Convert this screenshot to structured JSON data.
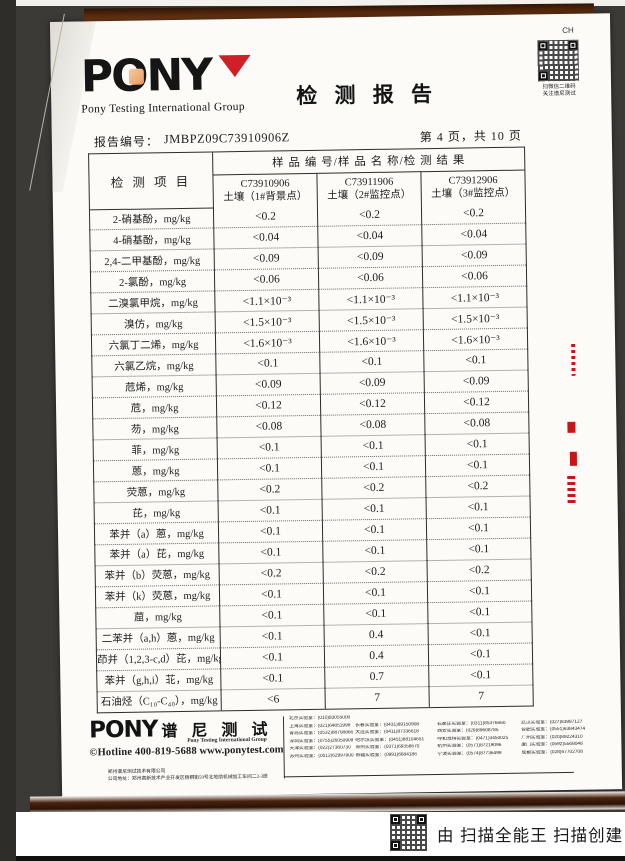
{
  "scan": {
    "corner_mark": "CH",
    "qr_caption_line1": "扫微信二维码",
    "qr_caption_line2": "关注谱尼测试",
    "scanner_attribution": "由 扫描全能王 扫描创建"
  },
  "header": {
    "logo_text": "PONY",
    "logo_tagline": "Pony Testing International Group",
    "title": "检 测 报 告"
  },
  "meta": {
    "report_no_label": "报告编号：",
    "report_no": "JMBPZ09C73910906Z",
    "page_info": "第 4 页，共 10 页"
  },
  "table": {
    "item_header": "检 测 项 目",
    "results_header": "样 品 编 号/样 品 名 称/检 测 结 果",
    "samples": [
      {
        "code": "C73910906",
        "name": "土壤（1#背景点）"
      },
      {
        "code": "C73911906",
        "name": "土壤（2#监控点）"
      },
      {
        "code": "C73912906",
        "name": "土壤（3#监控点）"
      }
    ],
    "rows": [
      {
        "item": "2-硝基酚，mg/kg",
        "values": [
          "<0.2",
          "<0.2",
          "<0.2"
        ]
      },
      {
        "item": "4-硝基酚，mg/kg",
        "values": [
          "<0.04",
          "<0.04",
          "<0.04"
        ]
      },
      {
        "item": "2,4-二甲基酚，mg/kg",
        "values": [
          "<0.09",
          "<0.09",
          "<0.09"
        ]
      },
      {
        "item": "2-氯酚，mg/kg",
        "values": [
          "<0.06",
          "<0.06",
          "<0.06"
        ]
      },
      {
        "item": "二溴氯甲烷，mg/kg",
        "values": [
          "<1.1×10⁻³",
          "<1.1×10⁻³",
          "<1.1×10⁻³"
        ]
      },
      {
        "item": "溴仿，mg/kg",
        "values": [
          "<1.5×10⁻³",
          "<1.5×10⁻³",
          "<1.5×10⁻³"
        ]
      },
      {
        "item": "六氯丁二烯，mg/kg",
        "values": [
          "<1.6×10⁻³",
          "<1.6×10⁻³",
          "<1.6×10⁻³"
        ]
      },
      {
        "item": "六氯乙烷，mg/kg",
        "values": [
          "<0.1",
          "<0.1",
          "<0.1"
        ]
      },
      {
        "item": "苊烯，mg/kg",
        "values": [
          "<0.09",
          "<0.09",
          "<0.09"
        ]
      },
      {
        "item": "苊，mg/kg",
        "values": [
          "<0.12",
          "<0.12",
          "<0.12"
        ]
      },
      {
        "item": "芴，mg/kg",
        "values": [
          "<0.08",
          "<0.08",
          "<0.08"
        ]
      },
      {
        "item": "菲，mg/kg",
        "values": [
          "<0.1",
          "<0.1",
          "<0.1"
        ]
      },
      {
        "item": "蒽，mg/kg",
        "values": [
          "<0.1",
          "<0.1",
          "<0.1"
        ]
      },
      {
        "item": "荧蒽，mg/kg",
        "values": [
          "<0.2",
          "<0.2",
          "<0.2"
        ]
      },
      {
        "item": "芘，mg/kg",
        "values": [
          "<0.1",
          "<0.1",
          "<0.1"
        ]
      },
      {
        "item": "苯并（a）蒽，mg/kg",
        "values": [
          "<0.1",
          "<0.1",
          "<0.1"
        ]
      },
      {
        "item": "苯并（a）芘，mg/kg",
        "values": [
          "<0.1",
          "<0.1",
          "<0.1"
        ]
      },
      {
        "item": "苯并（b）荧蒽，mg/kg",
        "values": [
          "<0.2",
          "<0.2",
          "<0.2"
        ]
      },
      {
        "item": "苯并（k）荧蒽，mg/kg",
        "values": [
          "<0.1",
          "<0.1",
          "<0.1"
        ]
      },
      {
        "item": "䓛，mg/kg",
        "values": [
          "<0.1",
          "<0.1",
          "<0.1"
        ]
      },
      {
        "item": "二苯并（a,h）蒽，mg/kg",
        "values": [
          "<0.1",
          "0.4",
          "<0.1"
        ]
      },
      {
        "item": "茚并（1,2,3-c,d）芘，mg/kg",
        "values": [
          "<0.1",
          "0.4",
          "<0.1"
        ]
      },
      {
        "item": "苯并（g,h,i）苝，mg/kg",
        "values": [
          "<0.1",
          "0.7",
          "<0.1"
        ]
      },
      {
        "item": "石油烃（C₁₀-C₄₀），mg/kg",
        "values": [
          "<6",
          "7",
          "7"
        ]
      }
    ]
  },
  "footer": {
    "logo_text": "PONY",
    "logo_cn": "谱 尼 测 试",
    "logo_sub": "Pony Testing International Group",
    "hotline": "©Hotline 400-819-5688",
    "website": "www.ponytest.com",
    "company": "郑州谱尼测试技术有限公司",
    "address": "公司地址：郑州高新技术产业开发区梧桐街59号北地助机械加工车间二2-3层",
    "labs": [
      [
        "北京实验室：(010)83055000"
      ],
      [
        "上海实验室：(021)64851999",
        "长春实验室：(0431)89150908",
        "石家庄实验室：(0311)85376660",
        "武汉实验室：(027)83997127"
      ],
      [
        "青岛实验室：(0532)88708866",
        "大连实验室：(0411)87336618",
        "西安实验室：(029)89608785",
        "合肥实验室：(0551)63843474"
      ],
      [
        "深圳实验室：(0755)26050909",
        "哈尔滨实验室：(0451)88104651",
        "呼和浩特实验室：(0471)3450025",
        "广州实验室：(020)89224310"
      ],
      [
        "天津实验室：(022)27360730",
        "郑州实验室：(0371)69358670",
        "杭州实验室：(0571)87219096",
        "厦门实验室：(0592)5568048"
      ],
      [
        "苏州实验室：(0512)62997900",
        "新疆实验室：(0991)6684186",
        "宁波实验室：(0574)87736499",
        "成都实验室：(028)67702708"
      ]
    ]
  },
  "colors": {
    "accent_red": "#cf2027",
    "stamp_red": "#c81616",
    "wood_brown": "#6b3513",
    "background": "#3c3a37"
  }
}
